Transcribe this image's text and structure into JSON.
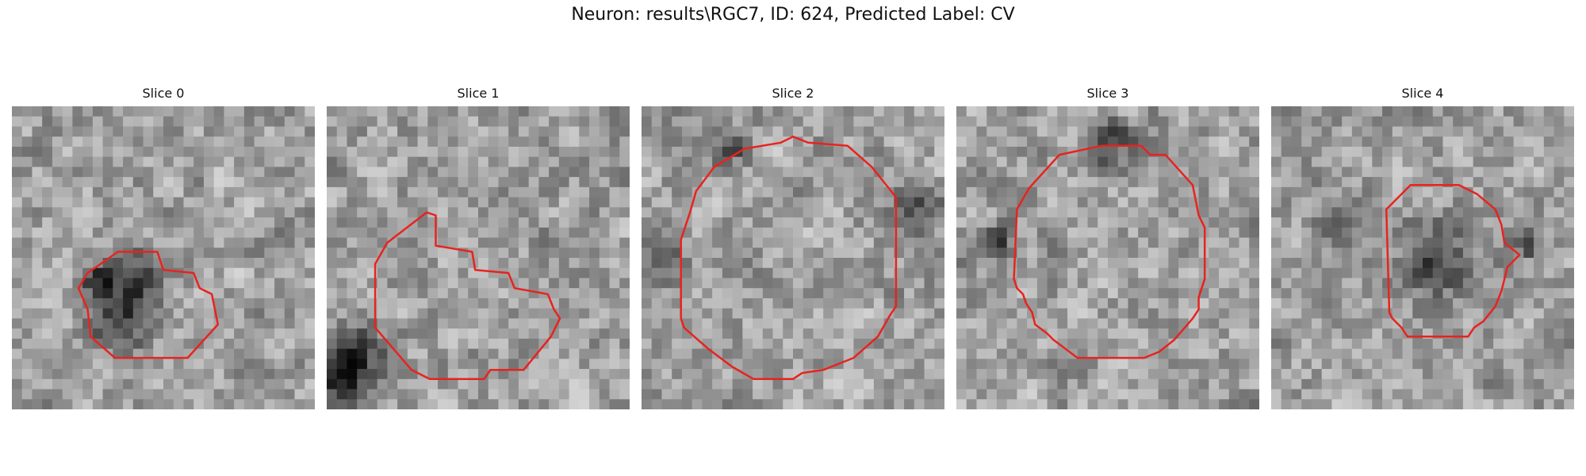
{
  "figure": {
    "title": "Neuron: results\\RGC7, ID: 624, Predicted Label: CV"
  },
  "outline_color": "#e8231f",
  "grid_size": 30,
  "panels": [
    {
      "title": "Slice 0",
      "seed": 11,
      "polygon": [
        [
          0.35,
          0.48
        ],
        [
          0.48,
          0.48
        ],
        [
          0.5,
          0.54
        ],
        [
          0.6,
          0.55
        ],
        [
          0.62,
          0.6
        ],
        [
          0.66,
          0.62
        ],
        [
          0.68,
          0.72
        ],
        [
          0.58,
          0.83
        ],
        [
          0.34,
          0.83
        ],
        [
          0.26,
          0.76
        ],
        [
          0.25,
          0.67
        ],
        [
          0.22,
          0.6
        ],
        [
          0.25,
          0.55
        ]
      ],
      "dark_spots": [
        [
          0.28,
          0.58,
          0.05
        ],
        [
          0.4,
          0.6,
          0.12
        ],
        [
          0.35,
          0.72,
          0.08
        ]
      ]
    },
    {
      "title": "Slice 1",
      "seed": 23,
      "polygon": [
        [
          0.33,
          0.35
        ],
        [
          0.36,
          0.36
        ],
        [
          0.36,
          0.46
        ],
        [
          0.48,
          0.48
        ],
        [
          0.49,
          0.54
        ],
        [
          0.6,
          0.55
        ],
        [
          0.62,
          0.6
        ],
        [
          0.73,
          0.62
        ],
        [
          0.75,
          0.67
        ],
        [
          0.77,
          0.7
        ],
        [
          0.74,
          0.76
        ],
        [
          0.65,
          0.87
        ],
        [
          0.54,
          0.87
        ],
        [
          0.52,
          0.9
        ],
        [
          0.34,
          0.9
        ],
        [
          0.28,
          0.87
        ],
        [
          0.16,
          0.73
        ],
        [
          0.16,
          0.52
        ],
        [
          0.2,
          0.45
        ]
      ],
      "dark_spots": [
        [
          0.1,
          0.82,
          0.1
        ],
        [
          0.05,
          0.9,
          0.08
        ]
      ]
    },
    {
      "title": "Slice 2",
      "seed": 37,
      "polygon": [
        [
          0.5,
          0.1
        ],
        [
          0.55,
          0.12
        ],
        [
          0.68,
          0.13
        ],
        [
          0.76,
          0.2
        ],
        [
          0.84,
          0.3
        ],
        [
          0.84,
          0.66
        ],
        [
          0.82,
          0.69
        ],
        [
          0.78,
          0.76
        ],
        [
          0.7,
          0.83
        ],
        [
          0.6,
          0.87
        ],
        [
          0.53,
          0.88
        ],
        [
          0.5,
          0.9
        ],
        [
          0.37,
          0.9
        ],
        [
          0.3,
          0.86
        ],
        [
          0.22,
          0.8
        ],
        [
          0.14,
          0.73
        ],
        [
          0.13,
          0.7
        ],
        [
          0.13,
          0.44
        ],
        [
          0.16,
          0.35
        ],
        [
          0.18,
          0.28
        ],
        [
          0.24,
          0.2
        ],
        [
          0.34,
          0.14
        ],
        [
          0.46,
          0.12
        ]
      ],
      "dark_spots": [
        [
          0.92,
          0.35,
          0.08
        ],
        [
          0.06,
          0.5,
          0.08
        ],
        [
          0.3,
          0.12,
          0.06
        ]
      ]
    },
    {
      "title": "Slice 3",
      "seed": 41,
      "polygon": [
        [
          0.34,
          0.16
        ],
        [
          0.48,
          0.13
        ],
        [
          0.61,
          0.13
        ],
        [
          0.64,
          0.16
        ],
        [
          0.69,
          0.16
        ],
        [
          0.78,
          0.26
        ],
        [
          0.8,
          0.36
        ],
        [
          0.82,
          0.4
        ],
        [
          0.82,
          0.57
        ],
        [
          0.8,
          0.63
        ],
        [
          0.8,
          0.67
        ],
        [
          0.78,
          0.7
        ],
        [
          0.72,
          0.77
        ],
        [
          0.67,
          0.81
        ],
        [
          0.62,
          0.83
        ],
        [
          0.4,
          0.83
        ],
        [
          0.32,
          0.77
        ],
        [
          0.3,
          0.75
        ],
        [
          0.26,
          0.72
        ],
        [
          0.25,
          0.68
        ],
        [
          0.23,
          0.65
        ],
        [
          0.22,
          0.62
        ],
        [
          0.2,
          0.6
        ],
        [
          0.19,
          0.57
        ],
        [
          0.2,
          0.34
        ],
        [
          0.24,
          0.27
        ]
      ],
      "dark_spots": [
        [
          0.13,
          0.45,
          0.06
        ],
        [
          0.5,
          0.12,
          0.08
        ]
      ]
    },
    {
      "title": "Slice 4",
      "seed": 53,
      "polygon": [
        [
          0.46,
          0.26
        ],
        [
          0.62,
          0.26
        ],
        [
          0.68,
          0.29
        ],
        [
          0.74,
          0.34
        ],
        [
          0.76,
          0.39
        ],
        [
          0.77,
          0.45
        ],
        [
          0.82,
          0.49
        ],
        [
          0.78,
          0.53
        ],
        [
          0.76,
          0.61
        ],
        [
          0.74,
          0.66
        ],
        [
          0.7,
          0.71
        ],
        [
          0.67,
          0.73
        ],
        [
          0.65,
          0.76
        ],
        [
          0.45,
          0.76
        ],
        [
          0.43,
          0.73
        ],
        [
          0.4,
          0.7
        ],
        [
          0.39,
          0.68
        ],
        [
          0.38,
          0.34
        ]
      ],
      "dark_spots": [
        [
          0.55,
          0.5,
          0.12
        ],
        [
          0.2,
          0.4,
          0.06
        ],
        [
          0.85,
          0.45,
          0.06
        ]
      ]
    }
  ]
}
